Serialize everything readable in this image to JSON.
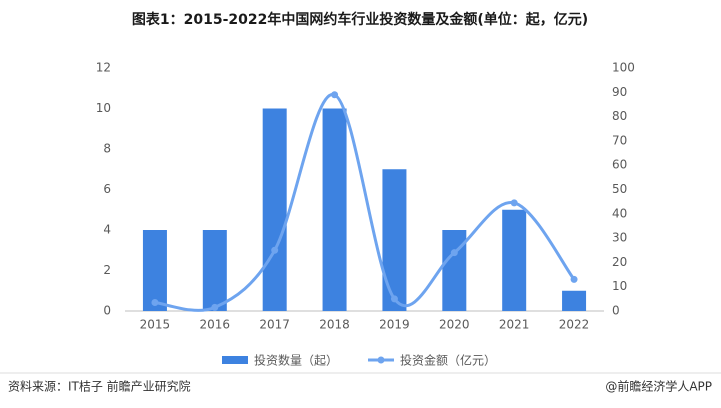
{
  "chart_data": {
    "type": "bar-line",
    "title": "图表1：2015-2022年中国网约车行业投资数量及金额(单位：起，亿元)",
    "categories": [
      "2015",
      "2016",
      "2017",
      "2018",
      "2019",
      "2020",
      "2021",
      "2022"
    ],
    "series": [
      {
        "name": "投资数量（起）",
        "type": "bar",
        "color": "#3d82e0",
        "values": [
          4,
          4,
          10,
          10,
          7,
          4,
          5,
          1
        ]
      },
      {
        "name": "投资金额（亿元）",
        "type": "line",
        "axis": "y2",
        "color": "#6ea4ef",
        "values": [
          3.5,
          1.5,
          25,
          89,
          5,
          24,
          44.5,
          13
        ]
      }
    ],
    "ylim": [
      0,
      12
    ],
    "yticks": [
      0,
      2,
      4,
      6,
      8,
      10,
      12
    ],
    "y2lim": [
      0,
      100
    ],
    "y2ticks": [
      0,
      10,
      20,
      30,
      40,
      50,
      60,
      70,
      80,
      90,
      100
    ],
    "source": "资料来源：IT桔子 前瞻产业研究院",
    "credit": "@前瞻经济学人APP"
  }
}
